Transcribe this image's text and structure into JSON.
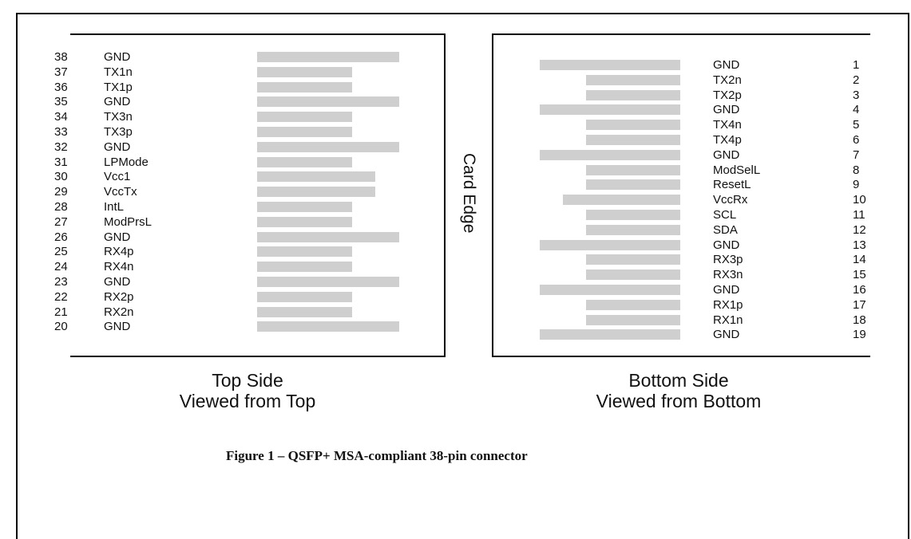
{
  "top_side": {
    "pins": [
      {
        "num": "38",
        "name": "GND",
        "bar": "long"
      },
      {
        "num": "37",
        "name": "TX1n",
        "bar": "short"
      },
      {
        "num": "36",
        "name": "TX1p",
        "bar": "short"
      },
      {
        "num": "35",
        "name": "GND",
        "bar": "long"
      },
      {
        "num": "34",
        "name": "TX3n",
        "bar": "short"
      },
      {
        "num": "33",
        "name": "TX3p",
        "bar": "short"
      },
      {
        "num": "32",
        "name": "GND",
        "bar": "long"
      },
      {
        "num": "31",
        "name": "LPMode",
        "bar": "short"
      },
      {
        "num": "30",
        "name": "Vcc1",
        "bar": "medium"
      },
      {
        "num": "29",
        "name": "VccTx",
        "bar": "medium"
      },
      {
        "num": "28",
        "name": "IntL",
        "bar": "short"
      },
      {
        "num": "27",
        "name": "ModPrsL",
        "bar": "short"
      },
      {
        "num": "26",
        "name": "GND",
        "bar": "long"
      },
      {
        "num": "25",
        "name": "RX4p",
        "bar": "short"
      },
      {
        "num": "24",
        "name": "RX4n",
        "bar": "short"
      },
      {
        "num": "23",
        "name": "GND",
        "bar": "long"
      },
      {
        "num": "22",
        "name": "RX2p",
        "bar": "short"
      },
      {
        "num": "21",
        "name": "RX2n",
        "bar": "short"
      },
      {
        "num": "20",
        "name": "GND",
        "bar": "long"
      }
    ],
    "caption_line1": "Top Side",
    "caption_line2": "Viewed from Top"
  },
  "bottom_side": {
    "pins": [
      {
        "num": "1",
        "name": "GND",
        "bar": "long"
      },
      {
        "num": "2",
        "name": "TX2n",
        "bar": "short"
      },
      {
        "num": "3",
        "name": "TX2p",
        "bar": "short"
      },
      {
        "num": "4",
        "name": "GND",
        "bar": "long"
      },
      {
        "num": "5",
        "name": "TX4n",
        "bar": "short"
      },
      {
        "num": "6",
        "name": "TX4p",
        "bar": "short"
      },
      {
        "num": "7",
        "name": "GND",
        "bar": "long"
      },
      {
        "num": "8",
        "name": "ModSelL",
        "bar": "short"
      },
      {
        "num": "9",
        "name": "ResetL",
        "bar": "short"
      },
      {
        "num": "10",
        "name": "VccRx",
        "bar": "medium"
      },
      {
        "num": "11",
        "name": "SCL",
        "bar": "short"
      },
      {
        "num": "12",
        "name": "SDA",
        "bar": "short"
      },
      {
        "num": "13",
        "name": "GND",
        "bar": "long"
      },
      {
        "num": "14",
        "name": "RX3p",
        "bar": "short"
      },
      {
        "num": "15",
        "name": "RX3n",
        "bar": "short"
      },
      {
        "num": "16",
        "name": "GND",
        "bar": "long"
      },
      {
        "num": "17",
        "name": "RX1p",
        "bar": "short"
      },
      {
        "num": "18",
        "name": "RX1n",
        "bar": "short"
      },
      {
        "num": "19",
        "name": "GND",
        "bar": "long"
      }
    ],
    "caption_line1": "Bottom Side",
    "caption_line2": "Viewed from Bottom"
  },
  "edge_label": "Card Edge",
  "figure_caption": "Figure 1 – QSFP+ MSA-compliant 38-pin connector",
  "colors": {
    "bar": "#cfcfcf",
    "line": "#000000"
  }
}
